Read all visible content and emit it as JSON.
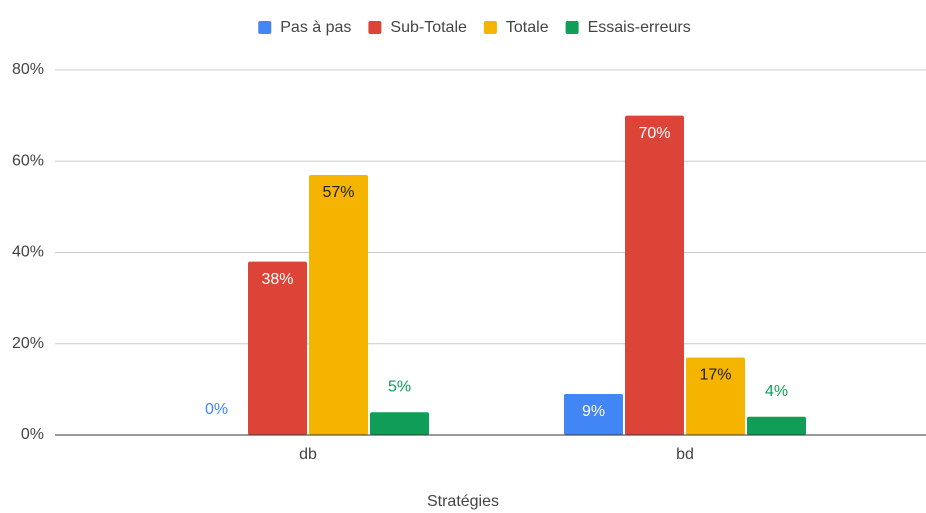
{
  "chart_data": {
    "type": "bar",
    "x_label": "Stratégies",
    "categories": [
      "db",
      "bd"
    ],
    "series": [
      {
        "name": "Pas à pas",
        "color": "#4285f4",
        "values": [
          0,
          9
        ],
        "value_labels": [
          "0%",
          "9%"
        ]
      },
      {
        "name": "Sub-Totale",
        "color": "#db4437",
        "values": [
          38,
          70
        ],
        "value_labels": [
          "38%",
          "70%"
        ]
      },
      {
        "name": "Totale",
        "color": "#f4b400",
        "values": [
          57,
          17
        ],
        "value_labels": [
          "57%",
          "17%"
        ]
      },
      {
        "name": "Essais-erreurs",
        "color": "#0f9d58",
        "values": [
          5,
          4
        ],
        "value_labels": [
          "5%",
          "4%"
        ]
      }
    ],
    "ylim": [
      0,
      80
    ],
    "yticks": [
      {
        "value": 0,
        "label": "0%"
      },
      {
        "value": 20,
        "label": "20%"
      },
      {
        "value": 40,
        "label": "40%"
      },
      {
        "value": 60,
        "label": "60%"
      },
      {
        "value": 80,
        "label": "80%"
      }
    ],
    "grid": true,
    "legend": "top"
  }
}
